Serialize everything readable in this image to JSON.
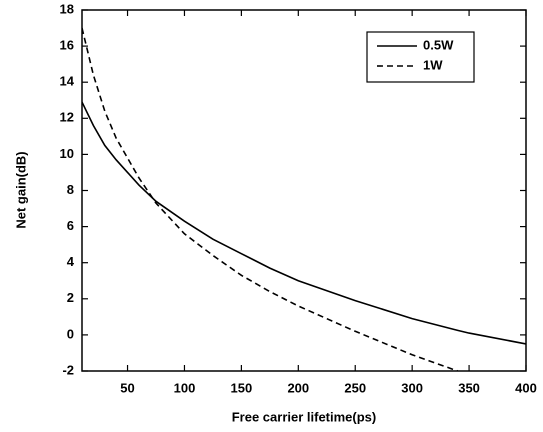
{
  "chart_data": {
    "type": "line",
    "x_label": "Free carrier lifetime(ps)",
    "y_label": "Net gain(dB)",
    "x": [
      10,
      20,
      30,
      40,
      50,
      60,
      75,
      100,
      125,
      150,
      175,
      200,
      250,
      300,
      340,
      350,
      400
    ],
    "series": [
      {
        "name": "0.5W",
        "color": "#000000",
        "dash": "solid",
        "values": [
          12.9,
          11.6,
          10.5,
          9.7,
          9.0,
          8.3,
          7.4,
          6.3,
          5.3,
          4.5,
          3.7,
          3.0,
          1.9,
          0.9,
          0.25,
          0.1,
          -0.5
        ]
      },
      {
        "name": "1W",
        "color": "#000000",
        "dash": "dashed",
        "values": [
          17,
          14.4,
          12.4,
          10.9,
          9.8,
          8.7,
          7.3,
          5.6,
          4.4,
          3.3,
          2.4,
          1.6,
          0.2,
          -1.1,
          -2.0,
          null,
          null
        ]
      }
    ],
    "xlim": [
      10,
      400
    ],
    "xticks": [
      50,
      100,
      150,
      200,
      250,
      300,
      350,
      400
    ],
    "ylim": [
      -2,
      18
    ],
    "yticks": [
      -2,
      0,
      2,
      4,
      6,
      8,
      10,
      12,
      14,
      16,
      18
    ],
    "legend": "upper right"
  }
}
